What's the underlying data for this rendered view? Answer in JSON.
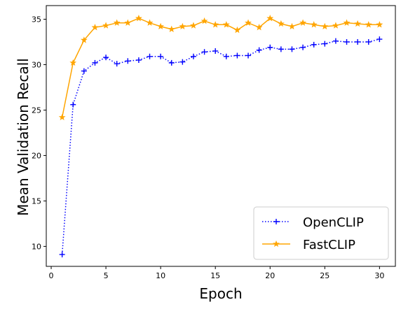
{
  "chart_data": {
    "type": "line",
    "xlabel": "Epoch",
    "ylabel": "Mean Validation Recall",
    "xlim": [
      -0.45,
      31.45
    ],
    "ylim": [
      7.8,
      36.5
    ],
    "xticks": [
      0,
      5,
      10,
      15,
      20,
      25,
      30
    ],
    "yticks": [
      10,
      15,
      20,
      25,
      30,
      35
    ],
    "grid": false,
    "legend": {
      "placement": "lower-right"
    },
    "series": [
      {
        "name": "OpenCLIP",
        "color": "#0000ff",
        "line_style": "dotted",
        "marker": "plus",
        "x": [
          1,
          2,
          3,
          4,
          5,
          6,
          7,
          8,
          9,
          10,
          11,
          12,
          13,
          14,
          15,
          16,
          17,
          18,
          19,
          20,
          21,
          22,
          23,
          24,
          25,
          26,
          27,
          28,
          29,
          30
        ],
        "y": [
          9.1,
          25.6,
          29.3,
          30.2,
          30.8,
          30.1,
          30.4,
          30.5,
          30.9,
          30.9,
          30.2,
          30.3,
          30.9,
          31.4,
          31.5,
          30.9,
          31.0,
          31.0,
          31.6,
          31.9,
          31.7,
          31.7,
          31.9,
          32.2,
          32.3,
          32.6,
          32.5,
          32.5,
          32.5,
          32.8
        ]
      },
      {
        "name": "FastCLIP",
        "color": "#ffa500",
        "line_style": "solid",
        "marker": "star",
        "x": [
          1,
          2,
          3,
          4,
          5,
          6,
          7,
          8,
          9,
          10,
          11,
          12,
          13,
          14,
          15,
          16,
          17,
          18,
          19,
          20,
          21,
          22,
          23,
          24,
          25,
          26,
          27,
          28,
          29,
          30
        ],
        "y": [
          24.2,
          30.2,
          32.7,
          34.1,
          34.3,
          34.6,
          34.6,
          35.1,
          34.6,
          34.2,
          33.9,
          34.2,
          34.3,
          34.8,
          34.4,
          34.4,
          33.8,
          34.6,
          34.1,
          35.1,
          34.5,
          34.2,
          34.6,
          34.4,
          34.2,
          34.3,
          34.6,
          34.5,
          34.4,
          34.4
        ]
      }
    ]
  }
}
